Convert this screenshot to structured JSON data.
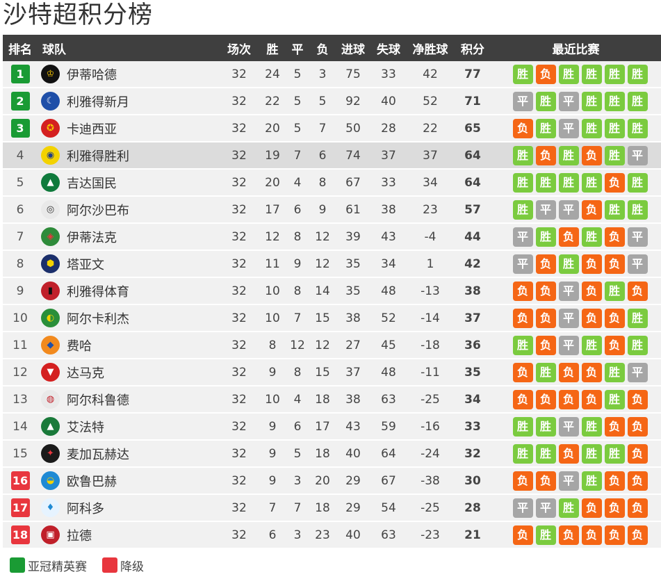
{
  "title": "沙特超积分榜",
  "headers": {
    "rank": "排名",
    "team": "球队",
    "played": "场次",
    "won": "胜",
    "drawn": "平",
    "lost": "负",
    "gf": "进球",
    "ga": "失球",
    "gd": "净胜球",
    "pts": "积分",
    "form": "最近比赛"
  },
  "form_labels": {
    "W": "胜",
    "D": "平",
    "L": "负"
  },
  "colors": {
    "acl": "#1a9b34",
    "relegation": "#e8363e",
    "win": "#7bcb3f",
    "loss": "#f56615",
    "draw": "#a6a6a6",
    "header_bg": "#3f3f3f",
    "highlight_row": "#dcdcdc"
  },
  "legend": {
    "acl": "亚冠精英赛",
    "relegation": "降级"
  },
  "rows": [
    {
      "rank": "1",
      "zone": "acl",
      "team": "伊蒂哈德",
      "logo": {
        "icon": "ittihad-crest-icon",
        "bg": "#111111",
        "fg": "#f5c400",
        "glyph": "♔"
      },
      "played": "32",
      "won": "24",
      "drawn": "5",
      "lost": "3",
      "gf": "75",
      "ga": "33",
      "gd": "42",
      "pts": "77",
      "form": [
        "W",
        "L",
        "W",
        "W",
        "W",
        "W"
      ]
    },
    {
      "rank": "2",
      "zone": "acl",
      "team": "利雅得新月",
      "logo": {
        "icon": "hilal-crest-icon",
        "bg": "#1f4fa8",
        "fg": "#ffffff",
        "glyph": "☾"
      },
      "played": "32",
      "won": "22",
      "drawn": "5",
      "lost": "5",
      "gf": "92",
      "ga": "40",
      "gd": "52",
      "pts": "71",
      "form": [
        "D",
        "W",
        "D",
        "W",
        "W",
        "W"
      ]
    },
    {
      "rank": "3",
      "zone": "acl",
      "team": "卡迪西亚",
      "logo": {
        "icon": "qadsiah-crest-icon",
        "bg": "#d42020",
        "fg": "#f5c400",
        "glyph": "✪"
      },
      "played": "32",
      "won": "20",
      "drawn": "5",
      "lost": "7",
      "gf": "50",
      "ga": "28",
      "gd": "22",
      "pts": "65",
      "form": [
        "L",
        "W",
        "D",
        "W",
        "W",
        "W"
      ]
    },
    {
      "rank": "4",
      "zone": "",
      "highlight": true,
      "team": "利雅得胜利",
      "logo": {
        "icon": "nassr-crest-icon",
        "bg": "#f3d200",
        "fg": "#1f3c88",
        "glyph": "◉"
      },
      "played": "32",
      "won": "19",
      "drawn": "7",
      "lost": "6",
      "gf": "74",
      "ga": "37",
      "gd": "37",
      "pts": "64",
      "form": [
        "W",
        "L",
        "W",
        "L",
        "W",
        "D"
      ]
    },
    {
      "rank": "5",
      "zone": "",
      "team": "吉达国民",
      "logo": {
        "icon": "ahli-crest-icon",
        "bg": "#0f7a3c",
        "fg": "#ffffff",
        "glyph": "▲"
      },
      "played": "32",
      "won": "20",
      "drawn": "4",
      "lost": "8",
      "gf": "67",
      "ga": "33",
      "gd": "34",
      "pts": "64",
      "form": [
        "W",
        "W",
        "W",
        "W",
        "L",
        "W"
      ]
    },
    {
      "rank": "6",
      "zone": "",
      "team": "阿尔沙巴布",
      "logo": {
        "icon": "shabab-crest-icon",
        "bg": "#e9e9e9",
        "fg": "#333333",
        "glyph": "◎"
      },
      "played": "32",
      "won": "17",
      "drawn": "6",
      "lost": "9",
      "gf": "61",
      "ga": "38",
      "gd": "23",
      "pts": "57",
      "form": [
        "W",
        "D",
        "D",
        "L",
        "W",
        "W"
      ]
    },
    {
      "rank": "7",
      "zone": "",
      "team": "伊蒂法克",
      "logo": {
        "icon": "ettifaq-crest-icon",
        "bg": "#2e8b3a",
        "fg": "#e8363e",
        "glyph": "◈"
      },
      "played": "32",
      "won": "12",
      "drawn": "8",
      "lost": "12",
      "gf": "39",
      "ga": "43",
      "gd": "-4",
      "pts": "44",
      "form": [
        "D",
        "W",
        "L",
        "W",
        "L",
        "D"
      ]
    },
    {
      "rank": "8",
      "zone": "",
      "team": "塔亚文",
      "logo": {
        "icon": "taawoun-crest-icon",
        "bg": "#1b2f6b",
        "fg": "#f3d200",
        "glyph": "⬢"
      },
      "played": "32",
      "won": "11",
      "drawn": "9",
      "lost": "12",
      "gf": "35",
      "ga": "34",
      "gd": "1",
      "pts": "42",
      "form": [
        "D",
        "L",
        "W",
        "L",
        "L",
        "D"
      ]
    },
    {
      "rank": "9",
      "zone": "",
      "team": "利雅得体育",
      "logo": {
        "icon": "riyadh-crest-icon",
        "bg": "#c0202a",
        "fg": "#111111",
        "glyph": "▮"
      },
      "played": "32",
      "won": "10",
      "drawn": "8",
      "lost": "14",
      "gf": "35",
      "ga": "48",
      "gd": "-13",
      "pts": "38",
      "form": [
        "L",
        "L",
        "D",
        "L",
        "W",
        "L"
      ]
    },
    {
      "rank": "10",
      "zone": "",
      "team": "阿尔卡利杰",
      "logo": {
        "icon": "khaleej-crest-icon",
        "bg": "#2a8f3a",
        "fg": "#f3d200",
        "glyph": "◐"
      },
      "played": "32",
      "won": "10",
      "drawn": "7",
      "lost": "15",
      "gf": "38",
      "ga": "52",
      "gd": "-14",
      "pts": "37",
      "form": [
        "L",
        "L",
        "D",
        "L",
        "L",
        "W"
      ]
    },
    {
      "rank": "11",
      "zone": "",
      "team": "费哈",
      "logo": {
        "icon": "fayha-crest-icon",
        "bg": "#f28a1e",
        "fg": "#1f4fa8",
        "glyph": "◆"
      },
      "played": "32",
      "won": "8",
      "drawn": "12",
      "lost": "12",
      "gf": "27",
      "ga": "45",
      "gd": "-18",
      "pts": "36",
      "form": [
        "W",
        "L",
        "D",
        "W",
        "L",
        "W"
      ]
    },
    {
      "rank": "12",
      "zone": "",
      "team": "达马克",
      "logo": {
        "icon": "damac-crest-icon",
        "bg": "#d42020",
        "fg": "#ffffff",
        "glyph": "▼"
      },
      "played": "32",
      "won": "9",
      "drawn": "8",
      "lost": "15",
      "gf": "37",
      "ga": "48",
      "gd": "-11",
      "pts": "35",
      "form": [
        "L",
        "W",
        "L",
        "L",
        "W",
        "D"
      ]
    },
    {
      "rank": "13",
      "zone": "",
      "team": "阿尔科鲁德",
      "logo": {
        "icon": "okhdood-crest-icon",
        "bg": "#e9e9e9",
        "fg": "#c0202a",
        "glyph": "◍"
      },
      "played": "32",
      "won": "10",
      "drawn": "4",
      "lost": "18",
      "gf": "38",
      "ga": "63",
      "gd": "-25",
      "pts": "34",
      "form": [
        "L",
        "L",
        "L",
        "L",
        "W",
        "L"
      ]
    },
    {
      "rank": "14",
      "zone": "",
      "team": "艾法特",
      "logo": {
        "icon": "fateh-crest-icon",
        "bg": "#1a7a3a",
        "fg": "#ffffff",
        "glyph": "▲"
      },
      "played": "32",
      "won": "9",
      "drawn": "6",
      "lost": "17",
      "gf": "43",
      "ga": "59",
      "gd": "-16",
      "pts": "33",
      "form": [
        "W",
        "W",
        "D",
        "W",
        "L",
        "L"
      ]
    },
    {
      "rank": "15",
      "zone": "",
      "team": "麦加瓦赫达",
      "logo": {
        "icon": "wehda-crest-icon",
        "bg": "#1a1a1a",
        "fg": "#e8363e",
        "glyph": "✦"
      },
      "played": "32",
      "won": "9",
      "drawn": "5",
      "lost": "18",
      "gf": "40",
      "ga": "64",
      "gd": "-24",
      "pts": "32",
      "form": [
        "W",
        "W",
        "L",
        "W",
        "W",
        "L"
      ]
    },
    {
      "rank": "16",
      "zone": "rel",
      "team": "欧鲁巴赫",
      "logo": {
        "icon": "orobah-crest-icon",
        "bg": "#1f8ad4",
        "fg": "#f3d200",
        "glyph": "◒"
      },
      "played": "32",
      "won": "9",
      "drawn": "3",
      "lost": "20",
      "gf": "29",
      "ga": "67",
      "gd": "-38",
      "pts": "30",
      "form": [
        "L",
        "L",
        "D",
        "W",
        "L",
        "L"
      ]
    },
    {
      "rank": "17",
      "zone": "rel",
      "team": "阿科多",
      "logo": {
        "icon": "akhdoud-crest-icon",
        "bg": "#e6f3ff",
        "fg": "#1f8ad4",
        "glyph": "♦"
      },
      "played": "32",
      "won": "7",
      "drawn": "7",
      "lost": "18",
      "gf": "29",
      "ga": "54",
      "gd": "-25",
      "pts": "28",
      "form": [
        "D",
        "D",
        "W",
        "L",
        "L",
        "L"
      ]
    },
    {
      "rank": "18",
      "zone": "rel",
      "team": "拉德",
      "logo": {
        "icon": "raed-crest-icon",
        "bg": "#c0202a",
        "fg": "#ffffff",
        "glyph": "▣"
      },
      "played": "32",
      "won": "6",
      "drawn": "3",
      "lost": "23",
      "gf": "40",
      "ga": "63",
      "gd": "-23",
      "pts": "21",
      "form": [
        "L",
        "W",
        "L",
        "L",
        "L",
        "L"
      ]
    }
  ]
}
